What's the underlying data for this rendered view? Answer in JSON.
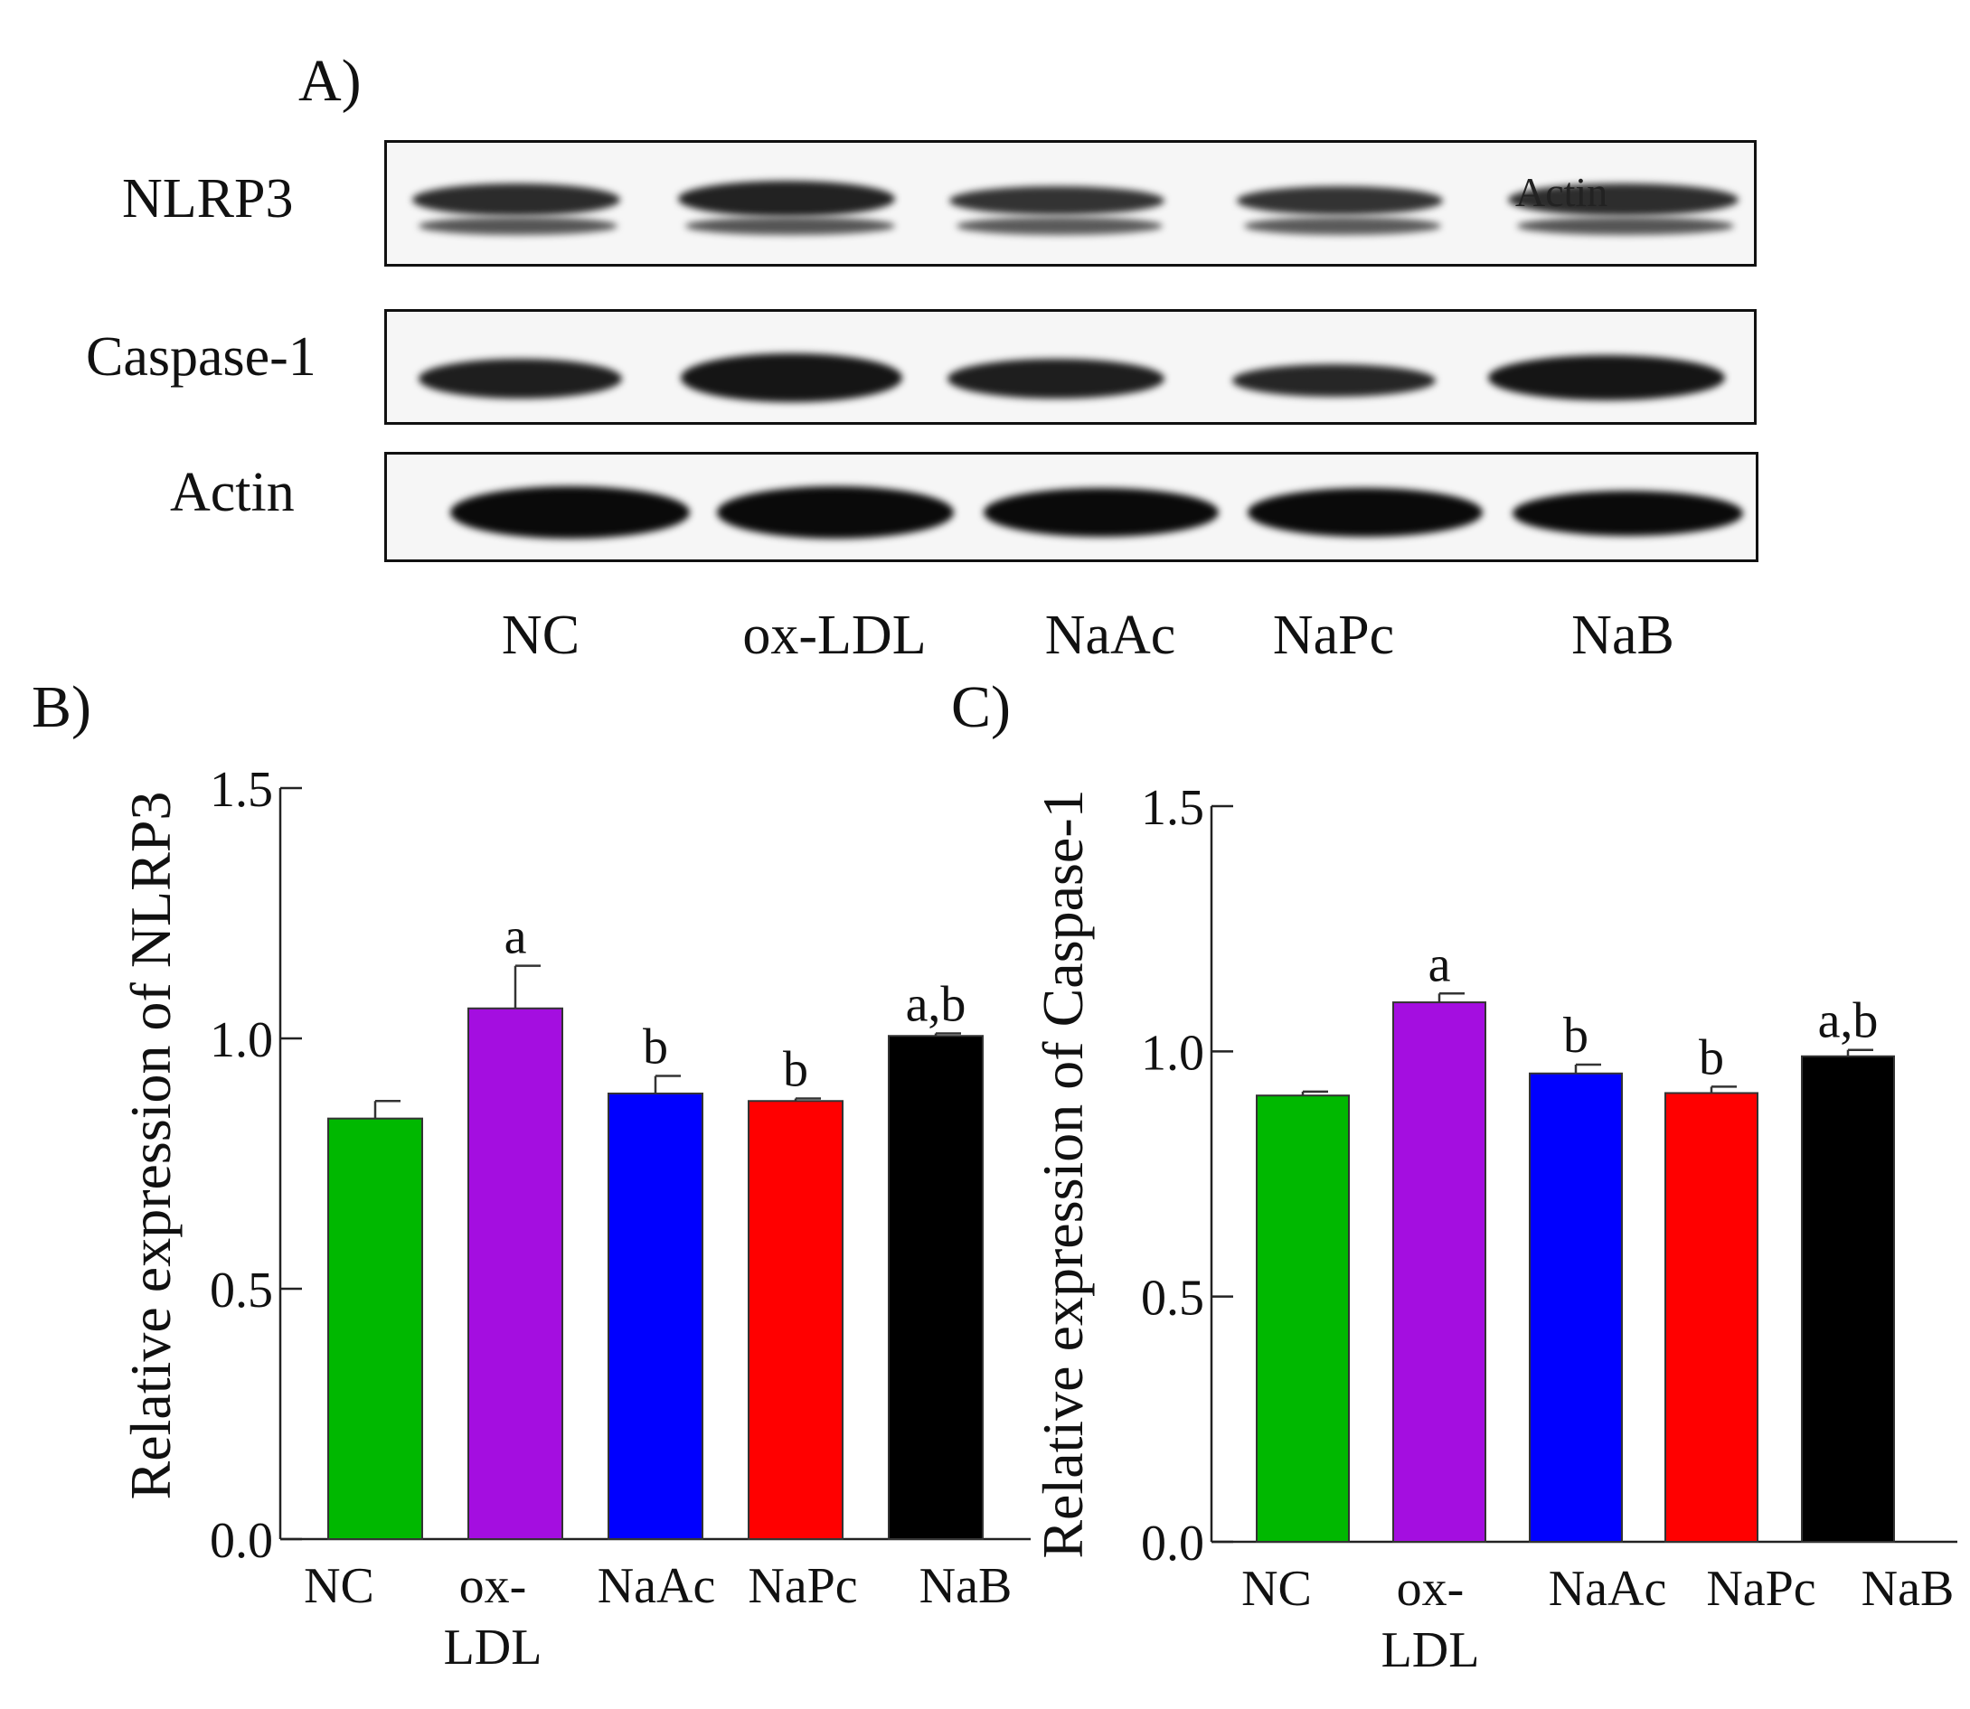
{
  "panel_a": {
    "label": "A)",
    "rows": [
      {
        "name": "NLRP3",
        "overlay": "Actin"
      },
      {
        "name": "Caspase-1",
        "overlay": ""
      },
      {
        "name": "Actin",
        "overlay": ""
      }
    ],
    "lanes": [
      "NC",
      "ox-LDL",
      "NaAc",
      "NaPc",
      "NaB"
    ]
  },
  "chart_data": [
    {
      "panel_label": "B)",
      "type": "bar",
      "categories": [
        "NC",
        "ox-\nLDL",
        "NaAc",
        "NaPc",
        "NaB"
      ],
      "values": [
        0.84,
        1.06,
        0.89,
        0.875,
        1.005
      ],
      "errors": [
        0.035,
        0.085,
        0.035,
        0.005,
        0.005
      ],
      "annotations": [
        "",
        "a",
        "b",
        "b",
        "a,b"
      ],
      "colors": [
        "#00b800",
        "#a40ee0",
        "#0000ff",
        "#ff0000",
        "#000000"
      ],
      "title": "",
      "xlabel": "",
      "ylabel": "Relative expression of  NLRP3",
      "ylim": [
        0,
        1.5
      ],
      "yticks": [
        "0.0",
        "0.5",
        "1.0",
        "1.5"
      ]
    },
    {
      "panel_label": "C)",
      "type": "bar",
      "categories": [
        "NC",
        "ox-\nLDL",
        "NaAc",
        "NaPc",
        "NaB"
      ],
      "values": [
        0.91,
        1.1,
        0.955,
        0.915,
        0.99
      ],
      "errors": [
        0.008,
        0.018,
        0.018,
        0.013,
        0.013
      ],
      "annotations": [
        "",
        "a",
        "b",
        "b",
        "a,b"
      ],
      "colors": [
        "#00b800",
        "#a40ee0",
        "#0000ff",
        "#ff0000",
        "#000000"
      ],
      "title": "",
      "xlabel": "",
      "ylabel": "Relative expression of  Caspase-1",
      "ylim": [
        0,
        1.5
      ],
      "yticks": [
        "0.0",
        "0.5",
        "1.0",
        "1.5"
      ]
    }
  ]
}
